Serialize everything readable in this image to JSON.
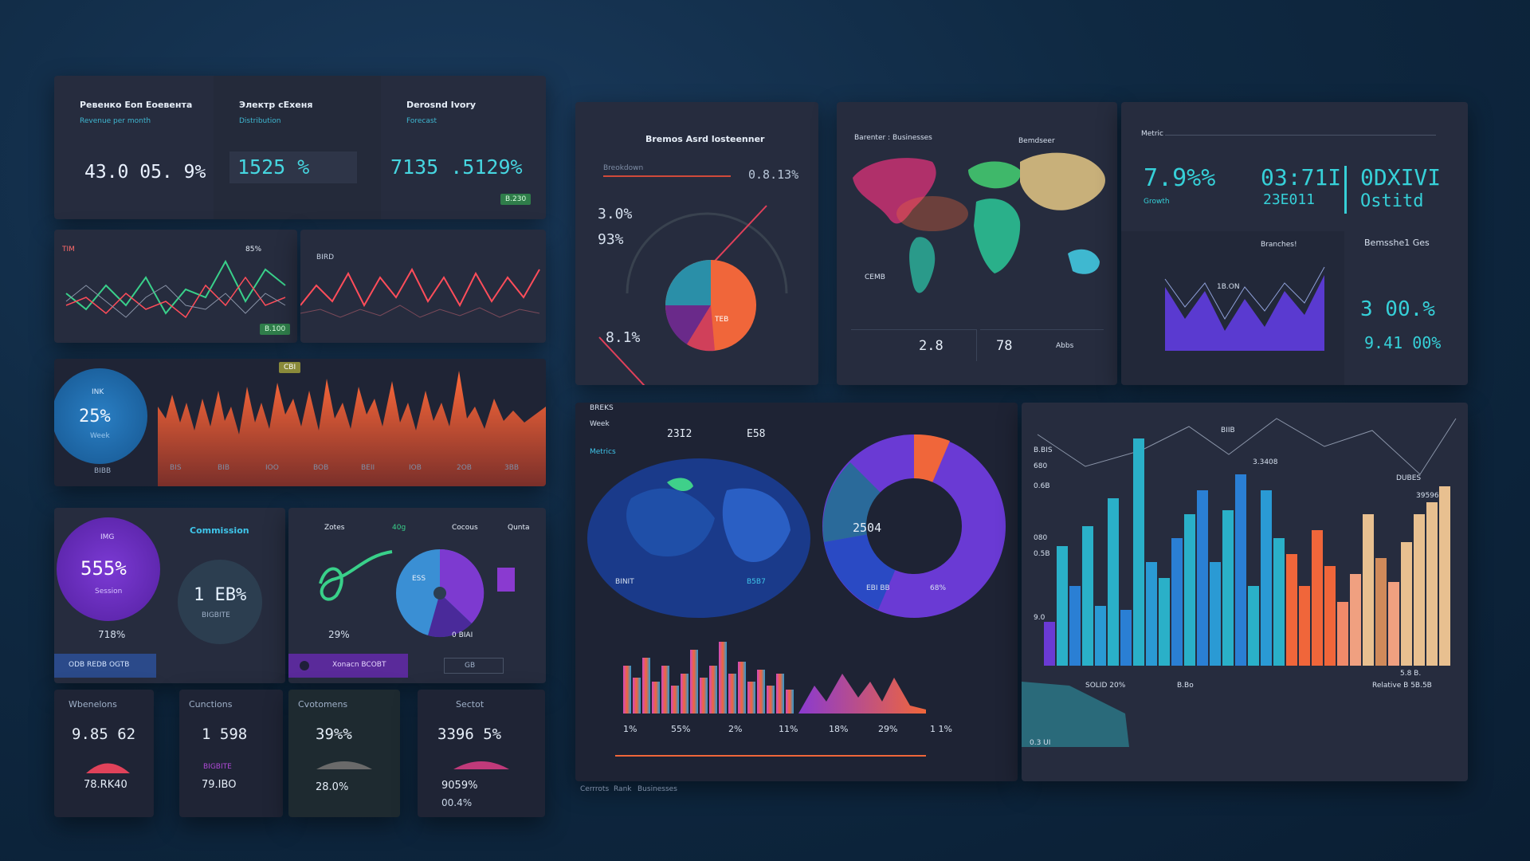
{
  "kpi_top": [
    {
      "title": "Ревенко Еоп Еоевента",
      "sub": "Revenue per month",
      "value": "43.0 05. 9%"
    },
    {
      "title": "Электр сЕхеня",
      "sub": "Distribution",
      "value": "1525 %"
    },
    {
      "title": "Derosnd Ivory",
      "sub": "Forecast",
      "value": "7135 .5129%",
      "badge": "B.230"
    }
  ],
  "line_panel": {
    "left_label": "TIM",
    "left_pct": "85%",
    "left_badge": "B.100",
    "right_label": "BIRD"
  },
  "area_panel": {
    "circle_value": "25%",
    "circle_top": "INK",
    "circle_sub": "Week",
    "circle_under": "BIBB",
    "marker": "CBI",
    "xticks": [
      "BIS",
      "BIB",
      "IOO",
      "BOB",
      "BEII",
      "IOB",
      "2OB",
      "3BB"
    ]
  },
  "bottom_left": {
    "left_circle": "555%",
    "left_circle_top": "IMG",
    "left_circle_sub": "Session",
    "left_under": "718%",
    "mid_header": "Commission",
    "mid_circle": "1 EB%",
    "mid_circle_sub": "BIGBITE",
    "left_btn": "ODB REDB OGTB",
    "pie_cols": [
      "Zotes",
      "40g",
      "Cocous",
      "Qunta"
    ],
    "pie_left_val": "29%",
    "pie_right_val": "0 BIAI",
    "pie_badge": "ESS",
    "pie_btn": "Xonacn BCOBT",
    "pie_btn2": "GB"
  },
  "bottom_stats": [
    {
      "title": "Wbenelons",
      "value": "9.85 62",
      "under": "78.RK40"
    },
    {
      "title": "Cunctions",
      "value": "1 598",
      "under": "79.IBO",
      "pill": "BIGBITE"
    },
    {
      "title": "Cvotomens",
      "value": "39%%",
      "under": "28.0%"
    },
    {
      "title": "Sectot",
      "value": "3396 5%",
      "under": "9059%",
      "under2": "00.4%"
    }
  ],
  "gauge_panel": {
    "title": "Bremos Asrd losteenner",
    "sub": "Breokdown",
    "v1": "3.0%",
    "v2": "93%",
    "v3": "8.1%",
    "v4": "0.8.13%",
    "center": "TEB"
  },
  "map_panel": {
    "title": "Ваrenter : Businesses",
    "right": "Bemdseer",
    "country": "CEMB",
    "v1": "2.8",
    "v2": "78",
    "v3": "Abbs"
  },
  "kpi_right": {
    "title": "Metric",
    "v1": "7.9%%",
    "v1_sub": "Growth",
    "v2": "03:71I",
    "v2b": "23E011",
    "v3": "0DXIVI",
    "v3b": "Ostitd",
    "area_label": "Branches!",
    "v4": "3 00.%",
    "v5": "9.41 00%",
    "side_title": "Bemsshe1 Ges",
    "chart_peak": "1B.ON"
  },
  "globe_panel": {
    "labels": [
      "BREKS",
      "Week",
      "Metrics"
    ],
    "top1": "23I2",
    "top2": "E58",
    "lbl1": "BINIT",
    "lbl2": "B5B7",
    "donut_center": "2504",
    "donut_bl": "EBI BB",
    "donut_br": "68%",
    "bar_ticks": [
      "1%",
      "55%",
      "2%",
      "11%",
      "18%",
      "29%",
      "1 1%"
    ],
    "footer": [
      "Cerrrots",
      "Rank",
      "Businesses"
    ]
  },
  "bar_panel": {
    "left_ticks": [
      "B.BIS",
      "680",
      "0.6B",
      "080",
      "0.5B",
      "9.0"
    ],
    "labels": [
      "3.3408",
      "DUBES",
      "39596",
      "5.8 B.",
      "BIIB"
    ],
    "footer": [
      "0.3 UI",
      "SOLID 20%",
      "B.Bo",
      "Relative B 5B.5B"
    ]
  },
  "colors": {
    "accent_teal": "#2fd0d8",
    "accent_orange": "#f0663a",
    "accent_purple": "#6b3ad4",
    "accent_blue": "#2a7fd4"
  }
}
